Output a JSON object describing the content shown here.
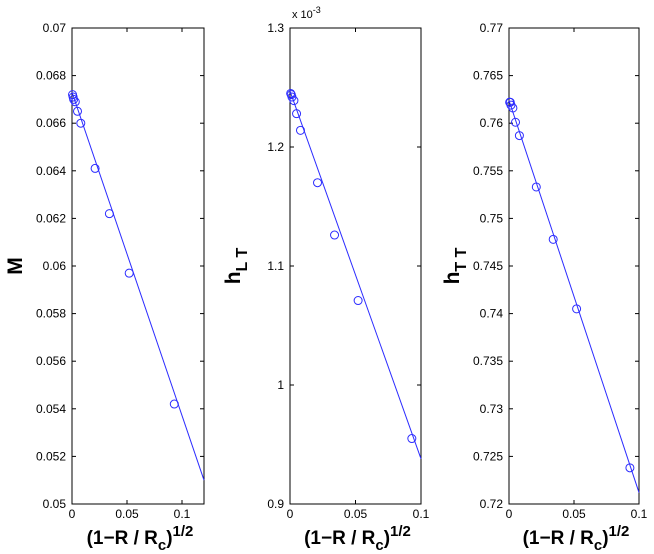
{
  "chart_data": [
    {
      "type": "line",
      "ylabel": "M",
      "xlabel": "(1−R / R_c)^{1/2}",
      "xlim": [
        0,
        0.12
      ],
      "ylim": [
        0.05,
        0.07
      ],
      "xticks": [
        "0",
        "0.05",
        "0.1"
      ],
      "yticks": [
        "0.05",
        "0.052",
        "0.054",
        "0.056",
        "0.058",
        "0.06",
        "0.062",
        "0.064",
        "0.066",
        "0.068",
        "0.07"
      ],
      "multiplier": "",
      "fit_line": {
        "x": [
          0,
          0.12
        ],
        "y": [
          0.0673,
          0.051
        ]
      },
      "markers": {
        "x": [
          0.0005,
          0.001,
          0.0015,
          0.003,
          0.005,
          0.008,
          0.021,
          0.034,
          0.052,
          0.093
        ],
        "y": [
          0.0672,
          0.0671,
          0.067,
          0.0669,
          0.0665,
          0.066,
          0.0641,
          0.0622,
          0.0597,
          0.0542
        ]
      }
    },
    {
      "type": "line",
      "ylabel": "h_{L T}",
      "xlabel": "(1−R / R_c)^{1/2}",
      "xlim": [
        0,
        0.1
      ],
      "ylim": [
        0.9,
        1.3
      ],
      "xticks": [
        "0",
        "0.05",
        "0.1"
      ],
      "yticks": [
        "0.9",
        "1",
        "1.1",
        "1.2",
        "1.3"
      ],
      "multiplier": "x 10^{-3}",
      "fit_line": {
        "x": [
          0,
          0.1
        ],
        "y": [
          1.247,
          0.938
        ]
      },
      "markers": {
        "x": [
          0.0005,
          0.001,
          0.0015,
          0.003,
          0.005,
          0.008,
          0.021,
          0.034,
          0.052,
          0.093
        ],
        "y": [
          1.245,
          1.244,
          1.242,
          1.239,
          1.228,
          1.214,
          1.17,
          1.126,
          1.071,
          0.955
        ]
      }
    },
    {
      "type": "line",
      "ylabel": "h_{T T}",
      "xlabel": "(1−R / R_c)^{1/2}",
      "xlim": [
        0,
        0.1
      ],
      "ylim": [
        0.72,
        0.77
      ],
      "xticks": [
        "0",
        "0.05",
        "0.1"
      ],
      "yticks": [
        "0.72",
        "0.725",
        "0.73",
        "0.735",
        "0.74",
        "0.745",
        "0.75",
        "0.755",
        "0.76",
        "0.765",
        "0.77"
      ],
      "multiplier": "",
      "fit_line": {
        "x": [
          0,
          0.1
        ],
        "y": [
          0.7624,
          0.7212
        ]
      },
      "markers": {
        "x": [
          0.0005,
          0.001,
          0.0015,
          0.003,
          0.005,
          0.008,
          0.021,
          0.034,
          0.052,
          0.093
        ],
        "y": [
          0.7622,
          0.7622,
          0.7619,
          0.7616,
          0.7601,
          0.7587,
          0.7533,
          0.7478,
          0.7405,
          0.7238
        ]
      }
    }
  ],
  "colors": {
    "series": "#2b2bff",
    "axes": "#000000",
    "background": "#ffffff"
  }
}
